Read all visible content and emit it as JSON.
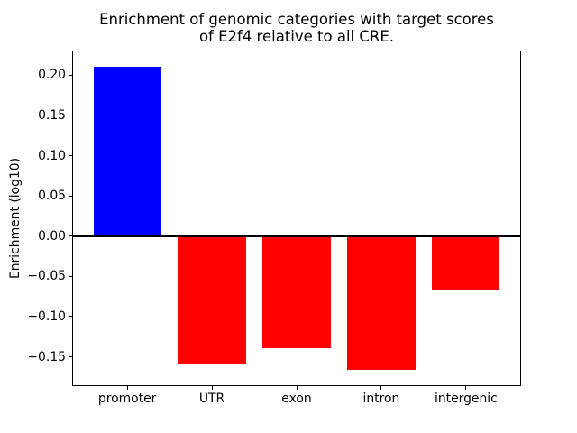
{
  "figure": {
    "background": "#ffffff",
    "axis_color": "#000000"
  },
  "chart_data": {
    "type": "bar",
    "title": "Enrichment of genomic categories with target scores\nof E2f4 relative to all CRE.",
    "xlabel": "",
    "ylabel": "Enrichment (log10)",
    "categories": [
      "promoter",
      "UTR",
      "exon",
      "intron",
      "intergenic"
    ],
    "values": [
      0.21,
      -0.158,
      -0.139,
      -0.166,
      -0.067
    ],
    "bar_colors": [
      "#0000ff",
      "#ff0000",
      "#ff0000",
      "#ff0000",
      "#ff0000"
    ],
    "positive_color": "#0000ff",
    "negative_color": "#ff0000",
    "yticks": [
      0.2,
      0.15,
      0.1,
      0.05,
      0.0,
      -0.05,
      -0.1,
      -0.15
    ],
    "ytick_labels": [
      "0.20",
      "0.15",
      "0.10",
      "0.05",
      "0.00",
      "−0.05",
      "−0.10",
      "−0.15"
    ],
    "ylim": [
      -0.1853,
      0.2295
    ],
    "xlim": [
      -0.64,
      4.64
    ],
    "bar_width": 0.8,
    "grid": false,
    "legend": null,
    "zero_line": true
  }
}
